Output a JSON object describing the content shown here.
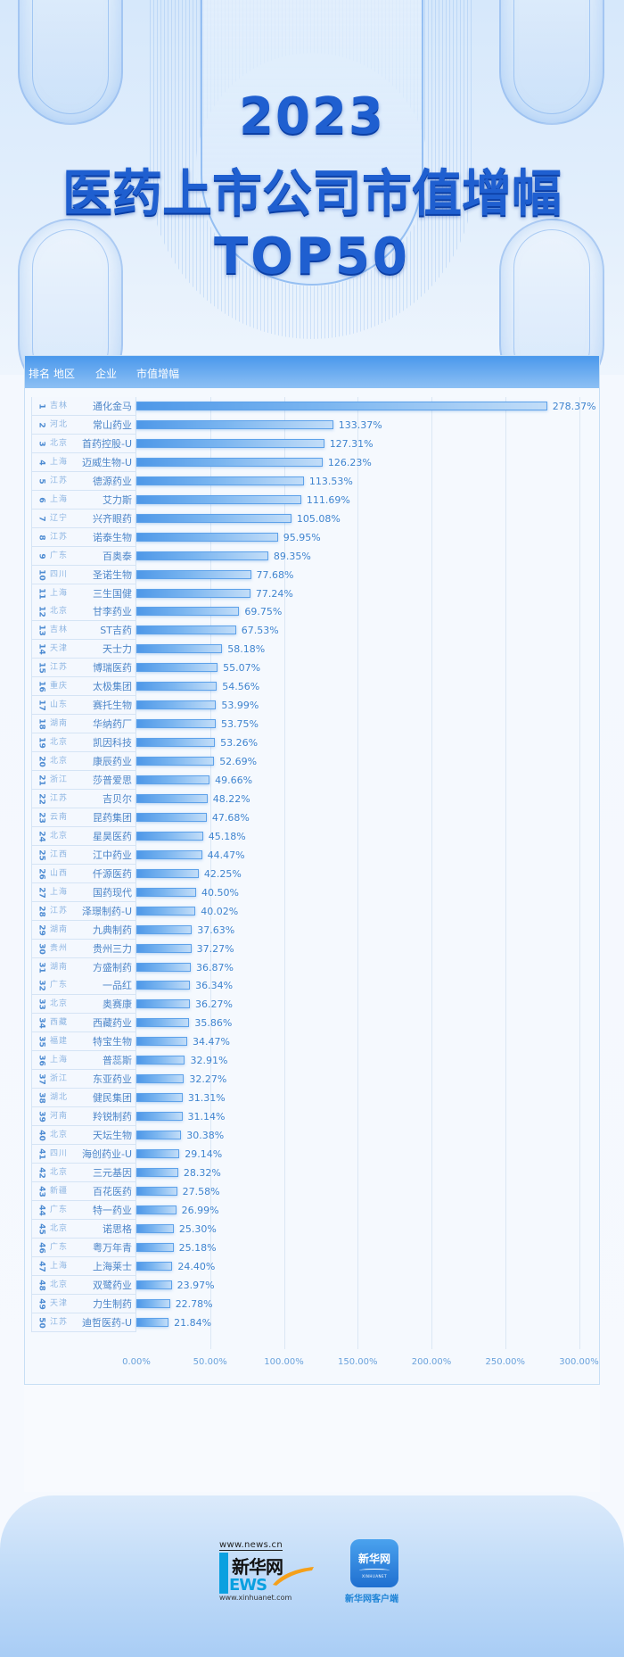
{
  "header": {
    "year": "2023",
    "title": "医药上市公司市值增幅",
    "subtitle": "TOP50"
  },
  "table_header": {
    "rank": "排名",
    "region": "地区",
    "company": "企业",
    "growth": "市值增幅"
  },
  "footer": {
    "site_url_top": "www.news.cn",
    "site_name": "新华网",
    "news_word": "EWS",
    "site_url_bottom": "www.xinhuanet.com",
    "app_name": "新华网",
    "app_sub": "XINHUANET",
    "app_label": "新华网客户端"
  },
  "colors": {
    "bar_start": "#4e98e8",
    "bar_end": "#c2ddf8",
    "title": "#1f5fd0",
    "header_bar": "#4a98ec",
    "value_text": "#3f84cf"
  },
  "chart_data": {
    "type": "bar",
    "orientation": "horizontal",
    "title": "2023医药上市公司市值增幅TOP50",
    "xlabel": "",
    "ylabel": "",
    "xlim": [
      0,
      300
    ],
    "x_ticks": [
      "0.00%",
      "50.00%",
      "100.00%",
      "150.00%",
      "200.00%",
      "250.00%",
      "300.00%"
    ],
    "grid": "vertical",
    "value_unit": "%",
    "columns": [
      "排名",
      "地区",
      "企业",
      "市值增幅"
    ],
    "rows": [
      {
        "rank": "1",
        "region": "吉林",
        "company": "通化金马",
        "value": 278.37,
        "label": "278.37%"
      },
      {
        "rank": "2",
        "region": "河北",
        "company": "常山药业",
        "value": 133.37,
        "label": "133.37%"
      },
      {
        "rank": "3",
        "region": "北京",
        "company": "首药控股-U",
        "value": 127.31,
        "label": "127.31%"
      },
      {
        "rank": "4",
        "region": "上海",
        "company": "迈威生物-U",
        "value": 126.23,
        "label": "126.23%"
      },
      {
        "rank": "5",
        "region": "江苏",
        "company": "德源药业",
        "value": 113.53,
        "label": "113.53%"
      },
      {
        "rank": "6",
        "region": "上海",
        "company": "艾力斯",
        "value": 111.69,
        "label": "111.69%"
      },
      {
        "rank": "7",
        "region": "辽宁",
        "company": "兴齐眼药",
        "value": 105.08,
        "label": "105.08%"
      },
      {
        "rank": "8",
        "region": "江苏",
        "company": "诺泰生物",
        "value": 95.95,
        "label": "95.95%"
      },
      {
        "rank": "9",
        "region": "广东",
        "company": "百奥泰",
        "value": 89.35,
        "label": "89.35%"
      },
      {
        "rank": "10",
        "region": "四川",
        "company": "圣诺生物",
        "value": 77.68,
        "label": "77.68%"
      },
      {
        "rank": "11",
        "region": "上海",
        "company": "三生国健",
        "value": 77.24,
        "label": "77.24%"
      },
      {
        "rank": "12",
        "region": "北京",
        "company": "甘李药业",
        "value": 69.75,
        "label": "69.75%"
      },
      {
        "rank": "13",
        "region": "吉林",
        "company": "ST吉药",
        "value": 67.53,
        "label": "67.53%"
      },
      {
        "rank": "14",
        "region": "天津",
        "company": "天士力",
        "value": 58.18,
        "label": "58.18%"
      },
      {
        "rank": "15",
        "region": "江苏",
        "company": "博瑞医药",
        "value": 55.07,
        "label": "55.07%"
      },
      {
        "rank": "16",
        "region": "重庆",
        "company": "太极集团",
        "value": 54.56,
        "label": "54.56%"
      },
      {
        "rank": "17",
        "region": "山东",
        "company": "赛托生物",
        "value": 53.99,
        "label": "53.99%"
      },
      {
        "rank": "18",
        "region": "湖南",
        "company": "华纳药厂",
        "value": 53.75,
        "label": "53.75%"
      },
      {
        "rank": "19",
        "region": "北京",
        "company": "凯因科技",
        "value": 53.26,
        "label": "53.26%"
      },
      {
        "rank": "20",
        "region": "北京",
        "company": "康辰药业",
        "value": 52.69,
        "label": "52.69%"
      },
      {
        "rank": "21",
        "region": "浙江",
        "company": "莎普爱思",
        "value": 49.66,
        "label": "49.66%"
      },
      {
        "rank": "22",
        "region": "江苏",
        "company": "吉贝尔",
        "value": 48.22,
        "label": "48.22%"
      },
      {
        "rank": "23",
        "region": "云南",
        "company": "昆药集团",
        "value": 47.68,
        "label": "47.68%"
      },
      {
        "rank": "24",
        "region": "北京",
        "company": "星昊医药",
        "value": 45.18,
        "label": "45.18%"
      },
      {
        "rank": "25",
        "region": "江西",
        "company": "江中药业",
        "value": 44.47,
        "label": "44.47%"
      },
      {
        "rank": "26",
        "region": "山西",
        "company": "仟源医药",
        "value": 42.25,
        "label": "42.25%"
      },
      {
        "rank": "27",
        "region": "上海",
        "company": "国药现代",
        "value": 40.5,
        "label": "40.50%"
      },
      {
        "rank": "28",
        "region": "江苏",
        "company": "泽璟制药-U",
        "value": 40.02,
        "label": "40.02%"
      },
      {
        "rank": "29",
        "region": "湖南",
        "company": "九典制药",
        "value": 37.63,
        "label": "37.63%"
      },
      {
        "rank": "30",
        "region": "贵州",
        "company": "贵州三力",
        "value": 37.27,
        "label": "37.27%"
      },
      {
        "rank": "31",
        "region": "湖南",
        "company": "方盛制药",
        "value": 36.87,
        "label": "36.87%"
      },
      {
        "rank": "32",
        "region": "广东",
        "company": "一品红",
        "value": 36.34,
        "label": "36.34%"
      },
      {
        "rank": "33",
        "region": "北京",
        "company": "奥赛康",
        "value": 36.27,
        "label": "36.27%"
      },
      {
        "rank": "34",
        "region": "西藏",
        "company": "西藏药业",
        "value": 35.86,
        "label": "35.86%"
      },
      {
        "rank": "35",
        "region": "福建",
        "company": "特宝生物",
        "value": 34.47,
        "label": "34.47%"
      },
      {
        "rank": "36",
        "region": "上海",
        "company": "普蕊斯",
        "value": 32.91,
        "label": "32.91%"
      },
      {
        "rank": "37",
        "region": "浙江",
        "company": "东亚药业",
        "value": 32.27,
        "label": "32.27%"
      },
      {
        "rank": "38",
        "region": "湖北",
        "company": "健民集团",
        "value": 31.31,
        "label": "31.31%"
      },
      {
        "rank": "39",
        "region": "河南",
        "company": "羚锐制药",
        "value": 31.14,
        "label": "31.14%"
      },
      {
        "rank": "40",
        "region": "北京",
        "company": "天坛生物",
        "value": 30.38,
        "label": "30.38%"
      },
      {
        "rank": "41",
        "region": "四川",
        "company": "海创药业-U",
        "value": 29.14,
        "label": "29.14%"
      },
      {
        "rank": "42",
        "region": "北京",
        "company": "三元基因",
        "value": 28.32,
        "label": "28.32%"
      },
      {
        "rank": "43",
        "region": "新疆",
        "company": "百花医药",
        "value": 27.58,
        "label": "27.58%"
      },
      {
        "rank": "44",
        "region": "广东",
        "company": "特一药业",
        "value": 26.99,
        "label": "26.99%"
      },
      {
        "rank": "45",
        "region": "北京",
        "company": "诺思格",
        "value": 25.3,
        "label": "25.30%"
      },
      {
        "rank": "46",
        "region": "广东",
        "company": "粤万年青",
        "value": 25.18,
        "label": "25.18%"
      },
      {
        "rank": "47",
        "region": "上海",
        "company": "上海莱士",
        "value": 24.4,
        "label": "24.40%"
      },
      {
        "rank": "48",
        "region": "北京",
        "company": "双鹭药业",
        "value": 23.97,
        "label": "23.97%"
      },
      {
        "rank": "49",
        "region": "天津",
        "company": "力生制药",
        "value": 22.78,
        "label": "22.78%"
      },
      {
        "rank": "50",
        "region": "江苏",
        "company": "迪哲医药-U",
        "value": 21.84,
        "label": "21.84%"
      }
    ]
  }
}
